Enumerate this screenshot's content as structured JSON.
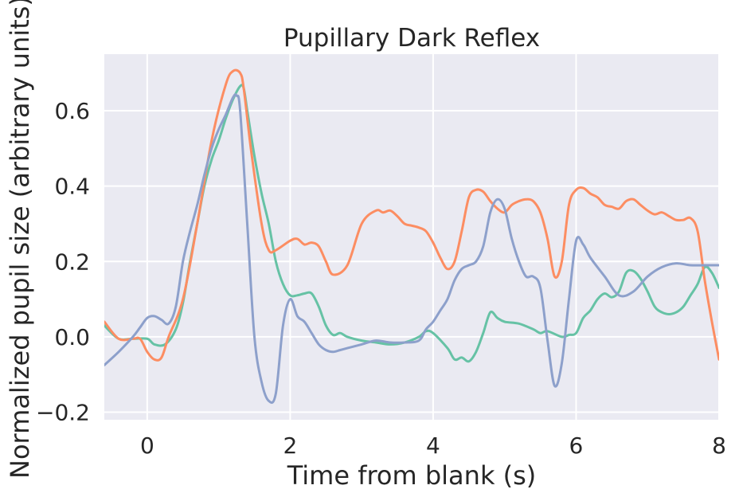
{
  "chart_data": {
    "type": "line",
    "title": "Pupillary Dark Reflex",
    "xlabel": "Time from blank (s)",
    "ylabel": "Normalized pupil size (arbitrary units)",
    "xlim": [
      -0.6,
      8.0
    ],
    "ylim": [
      -0.22,
      0.75
    ],
    "xticks": [
      0,
      2,
      4,
      6,
      8
    ],
    "xtick_labels": [
      "0",
      "2",
      "4",
      "6",
      "8"
    ],
    "yticks": [
      -0.2,
      0.0,
      0.2,
      0.4,
      0.6
    ],
    "ytick_labels": [
      "−0.2",
      "0.0",
      "0.2",
      "0.4",
      "0.6"
    ],
    "grid": true,
    "series": [
      {
        "color": "#66c2a5",
        "x": [
          -0.6,
          -0.4,
          -0.2,
          0.0,
          0.1,
          0.25,
          0.4,
          0.5,
          0.6,
          0.7,
          0.8,
          0.9,
          1.0,
          1.1,
          1.2,
          1.3,
          1.35,
          1.4,
          1.5,
          1.6,
          1.7,
          1.8,
          1.9,
          2.0,
          2.1,
          2.2,
          2.3,
          2.4,
          2.5,
          2.6,
          2.7,
          2.8,
          3.0,
          3.2,
          3.4,
          3.6,
          3.8,
          3.9,
          4.0,
          4.2,
          4.3,
          4.4,
          4.5,
          4.6,
          4.7,
          4.8,
          4.9,
          5.0,
          5.2,
          5.4,
          5.5,
          5.6,
          5.8,
          5.9,
          6.0,
          6.1,
          6.2,
          6.3,
          6.4,
          6.5,
          6.6,
          6.7,
          6.8,
          6.9,
          7.0,
          7.1,
          7.2,
          7.3,
          7.4,
          7.5,
          7.6,
          7.7,
          7.8,
          7.9,
          8.0
        ],
        "y": [
          0.03,
          -0.005,
          -0.005,
          -0.005,
          -0.02,
          -0.02,
          0.02,
          0.09,
          0.2,
          0.3,
          0.4,
          0.47,
          0.52,
          0.58,
          0.63,
          0.665,
          0.66,
          0.6,
          0.48,
          0.38,
          0.3,
          0.2,
          0.14,
          0.11,
          0.11,
          0.115,
          0.115,
          0.08,
          0.03,
          0.005,
          0.01,
          0.0,
          -0.01,
          -0.015,
          -0.02,
          -0.015,
          0.0,
          0.015,
          0.01,
          -0.03,
          -0.06,
          -0.055,
          -0.065,
          -0.04,
          0.01,
          0.065,
          0.05,
          0.04,
          0.035,
          0.02,
          0.01,
          0.015,
          0.0,
          0.005,
          0.01,
          0.05,
          0.07,
          0.1,
          0.115,
          0.105,
          0.12,
          0.17,
          0.175,
          0.155,
          0.12,
          0.08,
          0.065,
          0.06,
          0.065,
          0.08,
          0.11,
          0.14,
          0.185,
          0.17,
          0.13
        ]
      },
      {
        "color": "#fc8d62",
        "x": [
          -0.6,
          -0.4,
          -0.2,
          -0.1,
          0.0,
          0.1,
          0.2,
          0.3,
          0.5,
          0.7,
          0.9,
          1.1,
          1.2,
          1.3,
          1.35,
          1.45,
          1.6,
          1.7,
          1.8,
          2.0,
          2.1,
          2.2,
          2.3,
          2.4,
          2.5,
          2.6,
          2.8,
          3.0,
          3.2,
          3.3,
          3.4,
          3.5,
          3.6,
          3.7,
          3.8,
          3.9,
          4.0,
          4.1,
          4.2,
          4.3,
          4.4,
          4.5,
          4.6,
          4.7,
          4.8,
          4.9,
          5.0,
          5.1,
          5.2,
          5.3,
          5.4,
          5.5,
          5.6,
          5.7,
          5.8,
          5.9,
          6.0,
          6.1,
          6.2,
          6.3,
          6.4,
          6.5,
          6.6,
          6.7,
          6.8,
          6.9,
          7.0,
          7.1,
          7.2,
          7.3,
          7.4,
          7.5,
          7.6,
          7.7,
          7.8,
          7.9,
          8.0
        ],
        "y": [
          0.04,
          -0.005,
          -0.005,
          -0.005,
          -0.04,
          -0.06,
          -0.055,
          0.0,
          0.1,
          0.3,
          0.52,
          0.67,
          0.705,
          0.7,
          0.66,
          0.5,
          0.3,
          0.23,
          0.23,
          0.255,
          0.26,
          0.245,
          0.25,
          0.24,
          0.2,
          0.165,
          0.19,
          0.3,
          0.335,
          0.33,
          0.335,
          0.32,
          0.3,
          0.295,
          0.29,
          0.28,
          0.25,
          0.21,
          0.18,
          0.2,
          0.28,
          0.37,
          0.39,
          0.385,
          0.36,
          0.34,
          0.33,
          0.35,
          0.36,
          0.365,
          0.36,
          0.33,
          0.26,
          0.16,
          0.2,
          0.35,
          0.39,
          0.395,
          0.38,
          0.37,
          0.35,
          0.345,
          0.34,
          0.36,
          0.365,
          0.35,
          0.335,
          0.325,
          0.33,
          0.32,
          0.31,
          0.31,
          0.315,
          0.28,
          0.15,
          0.04,
          -0.06
        ]
      },
      {
        "color": "#8da0cb",
        "x": [
          -0.6,
          -0.4,
          -0.2,
          -0.1,
          0.0,
          0.1,
          0.2,
          0.3,
          0.4,
          0.5,
          0.6,
          0.7,
          0.8,
          0.9,
          1.0,
          1.1,
          1.2,
          1.25,
          1.3,
          1.4,
          1.5,
          1.6,
          1.7,
          1.8,
          1.9,
          2.0,
          2.1,
          2.2,
          2.3,
          2.4,
          2.5,
          2.6,
          2.7,
          2.8,
          3.0,
          3.2,
          3.4,
          3.6,
          3.8,
          3.9,
          4.0,
          4.1,
          4.2,
          4.3,
          4.4,
          4.5,
          4.6,
          4.7,
          4.8,
          4.9,
          5.0,
          5.1,
          5.2,
          5.3,
          5.4,
          5.5,
          5.6,
          5.7,
          5.8,
          5.9,
          6.0,
          6.1,
          6.2,
          6.4,
          6.6,
          6.8,
          7.0,
          7.2,
          7.4,
          7.6,
          7.8,
          8.0
        ],
        "y": [
          -0.075,
          -0.04,
          0.0,
          0.025,
          0.05,
          0.055,
          0.045,
          0.035,
          0.08,
          0.2,
          0.28,
          0.35,
          0.43,
          0.5,
          0.55,
          0.59,
          0.635,
          0.64,
          0.6,
          0.3,
          0.0,
          -0.12,
          -0.17,
          -0.15,
          0.03,
          0.1,
          0.055,
          0.04,
          0.01,
          -0.02,
          -0.035,
          -0.04,
          -0.035,
          -0.03,
          -0.02,
          -0.01,
          -0.015,
          -0.015,
          -0.01,
          0.02,
          0.04,
          0.07,
          0.1,
          0.15,
          0.18,
          0.19,
          0.2,
          0.24,
          0.33,
          0.365,
          0.34,
          0.26,
          0.2,
          0.16,
          0.16,
          0.13,
          -0.01,
          -0.13,
          -0.07,
          0.1,
          0.255,
          0.245,
          0.21,
          0.16,
          0.11,
          0.12,
          0.16,
          0.185,
          0.195,
          0.19,
          0.19,
          0.19
        ]
      }
    ]
  }
}
